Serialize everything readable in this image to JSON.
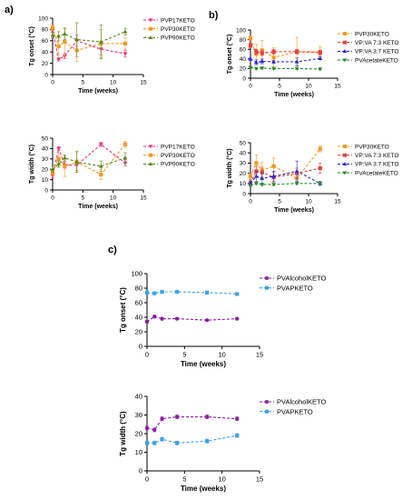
{
  "panel_labels": [
    "a)",
    "b)",
    "c)"
  ],
  "chart_data": [
    {
      "type": "line",
      "panel": "a)",
      "title": "",
      "xlabel": "Time (weeks)",
      "ylabel": "Tg onset (°C)",
      "xlim": [
        0,
        15
      ],
      "ylim": [
        0,
        100
      ],
      "xticks": [
        0,
        5,
        10,
        15
      ],
      "yticks": [
        0,
        20,
        40,
        60,
        80,
        100
      ],
      "grid": false,
      "legend_position": "right",
      "series": [
        {
          "name": "PVP17KETO",
          "color": "#e8307f",
          "marker": "triangle-down",
          "x": [
            0,
            1,
            2,
            4,
            8,
            12
          ],
          "y": [
            78,
            27,
            33,
            60,
            45,
            37
          ],
          "err": [
            3,
            3,
            5,
            10,
            10,
            6
          ]
        },
        {
          "name": "PVP30KETO",
          "color": "#f39a1d",
          "marker": "square",
          "x": [
            0,
            1,
            2,
            4,
            8,
            12
          ],
          "y": [
            83,
            50,
            58,
            43,
            55,
            55
          ],
          "err": [
            5,
            20,
            25,
            20,
            25,
            10
          ]
        },
        {
          "name": "PVP90KETO",
          "color": "#5a8a1a",
          "marker": "triangle",
          "x": [
            0,
            1,
            2,
            4,
            8,
            12
          ],
          "y": [
            70,
            68,
            72,
            62,
            58,
            76
          ],
          "err": [
            5,
            8,
            10,
            30,
            30,
            6
          ]
        }
      ]
    },
    {
      "type": "line",
      "panel": "b)",
      "title": "",
      "xlabel": "Time (weeks)",
      "ylabel": "Tg onset (°C)",
      "xlim": [
        0,
        15
      ],
      "ylim": [
        0,
        100
      ],
      "xticks": [
        0,
        5,
        10,
        15
      ],
      "yticks": [
        0,
        20,
        40,
        60,
        80,
        100
      ],
      "grid": false,
      "legend_position": "right",
      "series": [
        {
          "name": "PVP30KETO",
          "color": "#f39a1d",
          "marker": "square",
          "x": [
            0,
            1,
            2,
            4,
            8,
            12
          ],
          "y": [
            83,
            50,
            58,
            43,
            55,
            55
          ],
          "err": [
            5,
            20,
            20,
            20,
            30,
            10
          ]
        },
        {
          "name": "VP:VA 7:3 KETO",
          "color": "#e8413c",
          "marker": "square",
          "x": [
            0,
            1,
            2,
            4,
            8,
            12
          ],
          "y": [
            68,
            55,
            52,
            55,
            55,
            53
          ],
          "err": [
            5,
            5,
            5,
            5,
            5,
            5
          ]
        },
        {
          "name": "VP:VA 3:7 KETO",
          "color": "#2a2ad8",
          "marker": "triangle",
          "x": [
            0,
            1,
            2,
            4,
            8,
            12
          ],
          "y": [
            40,
            33,
            35,
            34,
            34,
            41
          ],
          "err": [
            3,
            5,
            5,
            3,
            8,
            3
          ]
        },
        {
          "name": "PVAcetateKETO",
          "color": "#2e8b2e",
          "marker": "triangle-down",
          "x": [
            0,
            1,
            2,
            4,
            8,
            12
          ],
          "y": [
            22,
            20,
            21,
            20,
            20,
            19
          ],
          "err": [
            2,
            2,
            2,
            2,
            2,
            2
          ]
        }
      ]
    },
    {
      "type": "line",
      "panel": "a)",
      "title": "",
      "xlabel": "Time (weeks)",
      "ylabel": "Tg width (°C)",
      "xlim": [
        0,
        15
      ],
      "ylim": [
        0,
        50
      ],
      "xticks": [
        0,
        5,
        10,
        15
      ],
      "yticks": [
        0,
        10,
        20,
        30,
        40,
        50
      ],
      "grid": false,
      "legend_position": "right",
      "series": [
        {
          "name": "PVP17KETO",
          "color": "#e8307f",
          "marker": "triangle-down",
          "x": [
            0,
            1,
            2,
            4,
            8,
            12
          ],
          "y": [
            14,
            40,
            24,
            24,
            44,
            26
          ],
          "err": [
            2,
            2,
            3,
            5,
            2,
            3
          ]
        },
        {
          "name": "PVP30KETO",
          "color": "#f39a1d",
          "marker": "square",
          "x": [
            0,
            1,
            2,
            4,
            8,
            12
          ],
          "y": [
            17,
            30,
            23,
            27,
            15,
            44
          ],
          "err": [
            3,
            8,
            10,
            10,
            5,
            3
          ]
        },
        {
          "name": "PVP90KETO",
          "color": "#5a8a1a",
          "marker": "triangle",
          "x": [
            0,
            1,
            2,
            4,
            8,
            12
          ],
          "y": [
            20,
            25,
            31,
            27,
            23,
            31
          ],
          "err": [
            3,
            3,
            3,
            10,
            5,
            5
          ]
        }
      ]
    },
    {
      "type": "line",
      "panel": "b)",
      "title": "",
      "xlabel": "Time (weeks)",
      "ylabel": "Tg width (°C)",
      "xlim": [
        0,
        15
      ],
      "ylim": [
        0,
        50
      ],
      "xticks": [
        0,
        5,
        10,
        15
      ],
      "yticks": [
        0,
        10,
        20,
        30,
        40,
        50
      ],
      "grid": false,
      "legend_position": "right",
      "series": [
        {
          "name": "PVP30KETO",
          "color": "#f39a1d",
          "marker": "square",
          "x": [
            0,
            1,
            2,
            4,
            8,
            12
          ],
          "y": [
            17,
            30,
            23,
            27,
            15,
            44
          ],
          "err": [
            3,
            8,
            8,
            8,
            5,
            3
          ]
        },
        {
          "name": "VP:VA 7:3 KETO",
          "color": "#e8413c",
          "marker": "square",
          "x": [
            0,
            1,
            2,
            4,
            8,
            12
          ],
          "y": [
            10,
            22,
            21,
            16,
            20,
            25
          ],
          "err": [
            3,
            5,
            5,
            5,
            5,
            5
          ]
        },
        {
          "name": "VP:VA 3:7 KETO",
          "color": "#2a2ad8",
          "marker": "triangle",
          "x": [
            0,
            1,
            2,
            4,
            8,
            12
          ],
          "y": [
            10,
            17,
            15,
            17,
            22,
            10
          ],
          "err": [
            2,
            5,
            5,
            5,
            10,
            2
          ]
        },
        {
          "name": "PVAcetateKETO",
          "color": "#2e8b2e",
          "marker": "triangle-down",
          "x": [
            0,
            1,
            2,
            4,
            8,
            12
          ],
          "y": [
            8,
            10,
            9,
            9,
            10,
            10
          ],
          "err": [
            1,
            1,
            1,
            1,
            1,
            1
          ]
        }
      ]
    },
    {
      "type": "line",
      "panel": "c)",
      "title": "",
      "xlabel": "Time (weeks)",
      "ylabel": "Tg onset (°C)",
      "xlim": [
        0,
        15
      ],
      "ylim": [
        0,
        100
      ],
      "xticks": [
        0,
        5,
        10,
        15
      ],
      "yticks": [
        0,
        20,
        40,
        60,
        80,
        100
      ],
      "grid": false,
      "legend_position": "right",
      "series": [
        {
          "name": "PVAlcoholKETO",
          "color": "#8b1a9e",
          "marker": "circle",
          "x": [
            0,
            1,
            2,
            4,
            8,
            12
          ],
          "y": [
            34,
            41,
            38,
            38,
            36,
            38
          ],
          "err": [
            2,
            2,
            2,
            1,
            1,
            1
          ]
        },
        {
          "name": "PVAPKETO",
          "color": "#3aa3e8",
          "marker": "square",
          "x": [
            0,
            1,
            2,
            4,
            8,
            12
          ],
          "y": [
            74,
            73,
            75,
            75,
            74,
            72
          ],
          "err": [
            1,
            2,
            1,
            1,
            1,
            1
          ]
        }
      ]
    },
    {
      "type": "line",
      "panel": "c)",
      "title": "",
      "xlabel": "Time (weeks)",
      "ylabel": "Tg width (°C)",
      "xlim": [
        0,
        15
      ],
      "ylim": [
        0,
        40
      ],
      "xticks": [
        0,
        5,
        10,
        15
      ],
      "yticks": [
        0,
        10,
        20,
        30,
        40
      ],
      "grid": false,
      "legend_position": "right",
      "series": [
        {
          "name": "PVAlcoholKETO",
          "color": "#8b1a9e",
          "marker": "circle",
          "x": [
            0,
            1,
            2,
            4,
            8,
            12
          ],
          "y": [
            23,
            22,
            28,
            29,
            29,
            28
          ],
          "err": [
            1,
            1,
            1,
            1,
            1,
            1
          ]
        },
        {
          "name": "PVAPKETO",
          "color": "#3aa3e8",
          "marker": "square",
          "x": [
            0,
            1,
            2,
            4,
            8,
            12
          ],
          "y": [
            15,
            15,
            17,
            15,
            16,
            19
          ],
          "err": [
            1,
            1,
            1,
            1,
            1,
            1
          ]
        }
      ]
    }
  ]
}
